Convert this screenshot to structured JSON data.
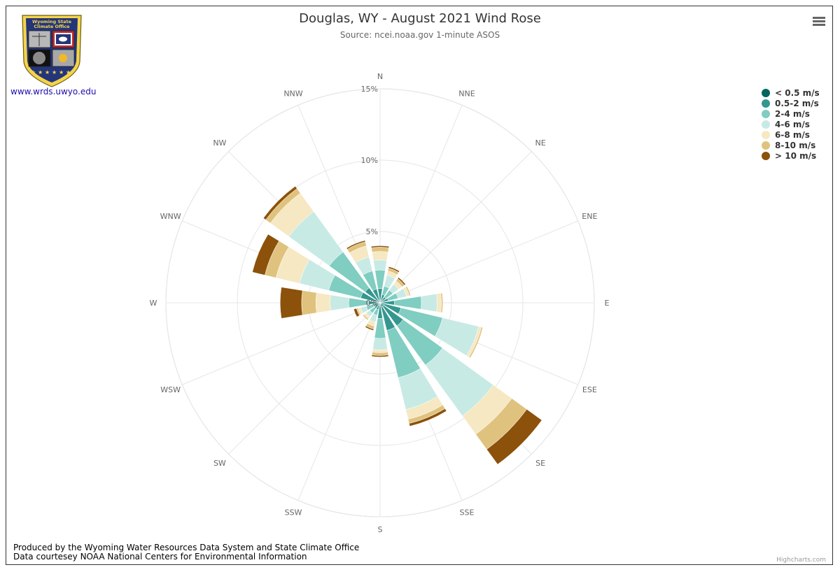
{
  "header": {
    "title": "Douglas, WY - August 2021 Wind Rose",
    "subtitle": "Source: ncei.noaa.gov 1-minute ASOS"
  },
  "logo": {
    "text_line1": "Wyoming State",
    "text_line2": "Climate Office",
    "link": "www.wrds.uwyo.edu"
  },
  "menu": {
    "icon": "hamburger-menu-icon"
  },
  "footer": {
    "line1": "Produced by the Wyoming Water Resources Data System and State Climate Office",
    "line2": "Data courtesey NOAA National Centers for Environmental Information",
    "credit": "Highcharts.com"
  },
  "chart_data": {
    "type": "windrose",
    "title": "Douglas, WY - August 2021 Wind Rose",
    "subtitle": "Source: ncei.noaa.gov 1-minute ASOS",
    "directions": [
      "N",
      "NNE",
      "NE",
      "ENE",
      "E",
      "ESE",
      "SE",
      "SSE",
      "S",
      "SSW",
      "SW",
      "WSW",
      "W",
      "WNW",
      "NW",
      "NNW"
    ],
    "radial_ticks": [
      5,
      10,
      15
    ],
    "radial_tick_labels": [
      "5%",
      "10%",
      "15%"
    ],
    "rmax": 15,
    "center_label": "0%",
    "legend_position": "top-right",
    "series": [
      {
        "name": "< 0.5 m/s",
        "color": "#01665e",
        "values": [
          0.2,
          0.2,
          0.2,
          0.2,
          0.2,
          0.3,
          0.3,
          0.3,
          0.2,
          0.2,
          0.2,
          0.2,
          0.2,
          0.2,
          0.2,
          0.2
        ]
      },
      {
        "name": "0.5-2 m/s",
        "color": "#35978f",
        "values": [
          0.8,
          0.4,
          0.3,
          0.4,
          0.8,
          1.2,
          1.7,
          1.7,
          0.9,
          0.3,
          0.3,
          0.3,
          0.6,
          1.2,
          1.1,
          0.8
        ]
      },
      {
        "name": "2-4 m/s",
        "color": "#80cdc1",
        "values": [
          1.3,
          0.6,
          0.6,
          0.7,
          1.9,
          3.0,
          3.4,
          3.4,
          1.4,
          0.4,
          0.4,
          0.5,
          1.4,
          2.3,
          3.1,
          1.3
        ]
      },
      {
        "name": "4-6 m/s",
        "color": "#c7eae5",
        "values": [
          0.7,
          0.8,
          0.5,
          0.6,
          1.1,
          2.6,
          4.4,
          2.3,
          0.8,
          0.5,
          0.3,
          0.4,
          1.3,
          2.1,
          3.5,
          1.0
        ]
      },
      {
        "name": "6-8 m/s",
        "color": "#f6e8c3",
        "values": [
          0.6,
          0.3,
          0.3,
          0.2,
          0.3,
          0.2,
          1.6,
          0.7,
          0.2,
          0.3,
          0.2,
          0.2,
          1.0,
          1.7,
          1.6,
          0.8
        ]
      },
      {
        "name": "8-10 m/s",
        "color": "#dfc27d",
        "values": [
          0.3,
          0.2,
          0.2,
          0.1,
          0.1,
          0.1,
          1.3,
          0.3,
          0.2,
          0.2,
          0.1,
          0.1,
          1.0,
          0.8,
          0.4,
          0.3
        ]
      },
      {
        "name": "> 10 m/s",
        "color": "#8c510a",
        "values": [
          0.1,
          0.1,
          0.1,
          0.0,
          0.0,
          0.0,
          1.3,
          0.2,
          0.1,
          0.1,
          0.0,
          0.2,
          1.5,
          0.9,
          0.2,
          0.1
        ]
      }
    ]
  }
}
